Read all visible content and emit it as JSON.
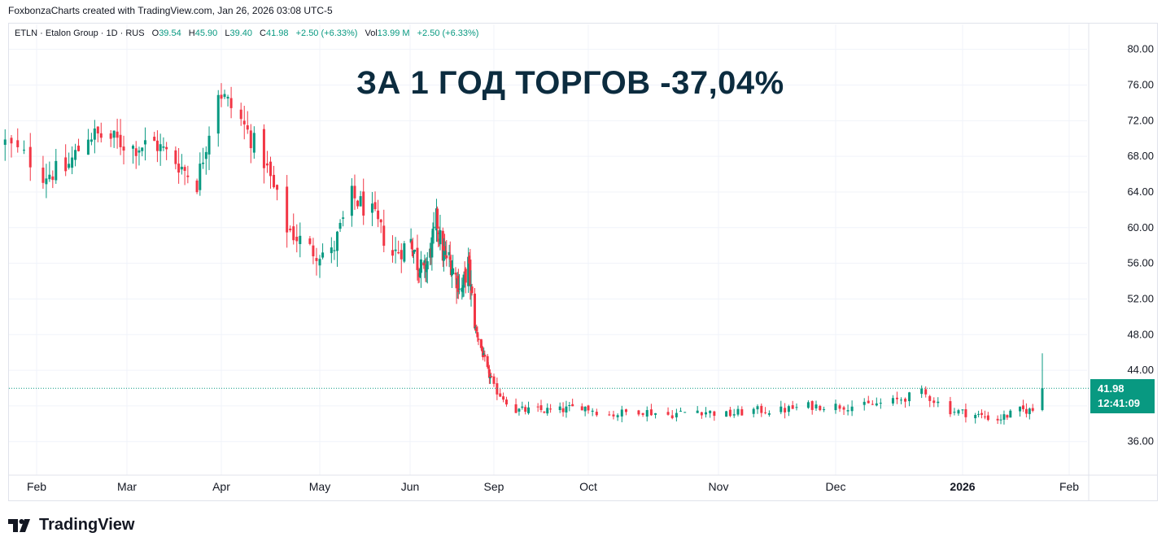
{
  "header": {
    "created_text": "FoxbonzaCharts created with TradingView.com, Jan 26, 2026 03:08 UTC-5"
  },
  "legend": {
    "symbol": "ETLN · Etalon Group · 1D · RUS",
    "o_label": "O",
    "o_value": "39.54",
    "h_label": "H",
    "h_value": "45.90",
    "l_label": "L",
    "l_value": "39.40",
    "c_label": "C",
    "c_value": "41.98",
    "change": "+2.50 (+6.33%)",
    "vol_label": "Vol",
    "vol_value": "13.99 M",
    "vol_change": "+2.50 (+6.33%)"
  },
  "overlay_title": "ЗА 1 ГОД ТОРГОВ -37,04%",
  "price_badge": {
    "price": "41.98",
    "countdown": "12:41:09"
  },
  "brand": {
    "name": "TradingView"
  },
  "colors": {
    "up": "#089981",
    "down": "#f23645",
    "grid": "#f0f3fa",
    "text": "#131722",
    "title": "#0c2c3f"
  },
  "chart_data": {
    "type": "candlestick",
    "last_price": 41.98,
    "ylim": [
      32.6,
      82.8
    ],
    "y_ticks": [
      "36.00",
      "40.00",
      "44.00",
      "48.00",
      "52.00",
      "56.00",
      "60.00",
      "64.00",
      "68.00",
      "72.00",
      "76.00",
      "80.00"
    ],
    "x_ticks": [
      {
        "label": "Feb",
        "date": "2025-02-01",
        "bold": false
      },
      {
        "label": "Mar",
        "date": "2025-03-01",
        "bold": false
      },
      {
        "label": "Apr",
        "date": "2025-04-01",
        "bold": false
      },
      {
        "label": "May",
        "date": "2025-05-01",
        "bold": false
      },
      {
        "label": "Jun",
        "date": "2025-06-01",
        "bold": false
      },
      {
        "label": "Sep",
        "date": "2025-09-01",
        "bold": false
      },
      {
        "label": "Oct",
        "date": "2025-10-01",
        "bold": false
      },
      {
        "label": "Nov",
        "date": "2025-11-01",
        "bold": false
      },
      {
        "label": "Dec",
        "date": "2025-12-01",
        "bold": false
      },
      {
        "label": "2026",
        "date": "2026-01-01",
        "bold": true
      },
      {
        "label": "Feb",
        "date": "2026-02-01",
        "bold": false
      }
    ],
    "anchors": [
      {
        "date": "2025-01-27",
        "close": 69.5
      },
      {
        "date": "2025-02-03",
        "close": 66.0
      },
      {
        "date": "2025-02-10",
        "close": 66.5
      },
      {
        "date": "2025-02-17",
        "close": 70.5
      },
      {
        "date": "2025-02-24",
        "close": 70.0
      },
      {
        "date": "2025-03-03",
        "close": 69.0
      },
      {
        "date": "2025-03-10",
        "close": 69.5
      },
      {
        "date": "2025-03-17",
        "close": 67.5
      },
      {
        "date": "2025-03-24",
        "close": 65.0
      },
      {
        "date": "2025-03-31",
        "close": 75.5
      },
      {
        "date": "2025-04-07",
        "close": 72.0
      },
      {
        "date": "2025-04-14",
        "close": 67.5
      },
      {
        "date": "2025-04-21",
        "close": 60.0
      },
      {
        "date": "2025-04-28",
        "close": 57.5
      },
      {
        "date": "2025-05-05",
        "close": 57.0
      },
      {
        "date": "2025-05-12",
        "close": 63.5
      },
      {
        "date": "2025-05-19",
        "close": 61.5
      },
      {
        "date": "2025-05-26",
        "close": 57.0
      },
      {
        "date": "2025-06-02",
        "close": 58.5
      },
      {
        "date": "2025-06-09",
        "close": 56.0
      },
      {
        "date": "2025-06-16",
        "close": 55.0
      },
      {
        "date": "2025-06-23",
        "close": 57.0
      },
      {
        "date": "2025-06-30",
        "close": 61.0
      },
      {
        "date": "2025-07-07",
        "close": 57.0
      },
      {
        "date": "2025-07-14",
        "close": 56.5
      },
      {
        "date": "2025-07-21",
        "close": 54.5
      },
      {
        "date": "2025-07-28",
        "close": 53.0
      },
      {
        "date": "2025-08-04",
        "close": 56.0
      },
      {
        "date": "2025-08-11",
        "close": 49.0
      },
      {
        "date": "2025-08-18",
        "close": 46.5
      },
      {
        "date": "2025-08-25",
        "close": 44.0
      },
      {
        "date": "2025-09-01",
        "close": 42.0
      },
      {
        "date": "2025-09-08",
        "close": 39.5
      },
      {
        "date": "2025-09-15",
        "close": 39.5
      },
      {
        "date": "2025-09-22",
        "close": 39.5
      },
      {
        "date": "2025-09-29",
        "close": 40.0
      },
      {
        "date": "2025-10-06",
        "close": 39.0
      },
      {
        "date": "2025-10-13",
        "close": 39.5
      },
      {
        "date": "2025-10-20",
        "close": 39.0
      },
      {
        "date": "2025-10-27",
        "close": 39.5
      },
      {
        "date": "2025-11-03",
        "close": 39.0
      },
      {
        "date": "2025-11-10",
        "close": 39.5
      },
      {
        "date": "2025-11-17",
        "close": 39.5
      },
      {
        "date": "2025-11-24",
        "close": 40.0
      },
      {
        "date": "2025-12-01",
        "close": 40.0
      },
      {
        "date": "2025-12-08",
        "close": 40.0
      },
      {
        "date": "2025-12-15",
        "close": 40.5
      },
      {
        "date": "2025-12-22",
        "close": 41.5
      },
      {
        "date": "2025-12-29",
        "close": 39.5
      },
      {
        "date": "2026-01-05",
        "close": 39.0
      },
      {
        "date": "2026-01-12",
        "close": 38.5
      },
      {
        "date": "2026-01-19",
        "close": 39.5
      },
      {
        "date": "2026-01-23",
        "close": 39.5
      },
      {
        "date": "2026-01-26",
        "close": 41.98
      }
    ],
    "last_candle": {
      "open": 39.54,
      "high": 45.9,
      "low": 39.4,
      "close": 41.98
    }
  }
}
